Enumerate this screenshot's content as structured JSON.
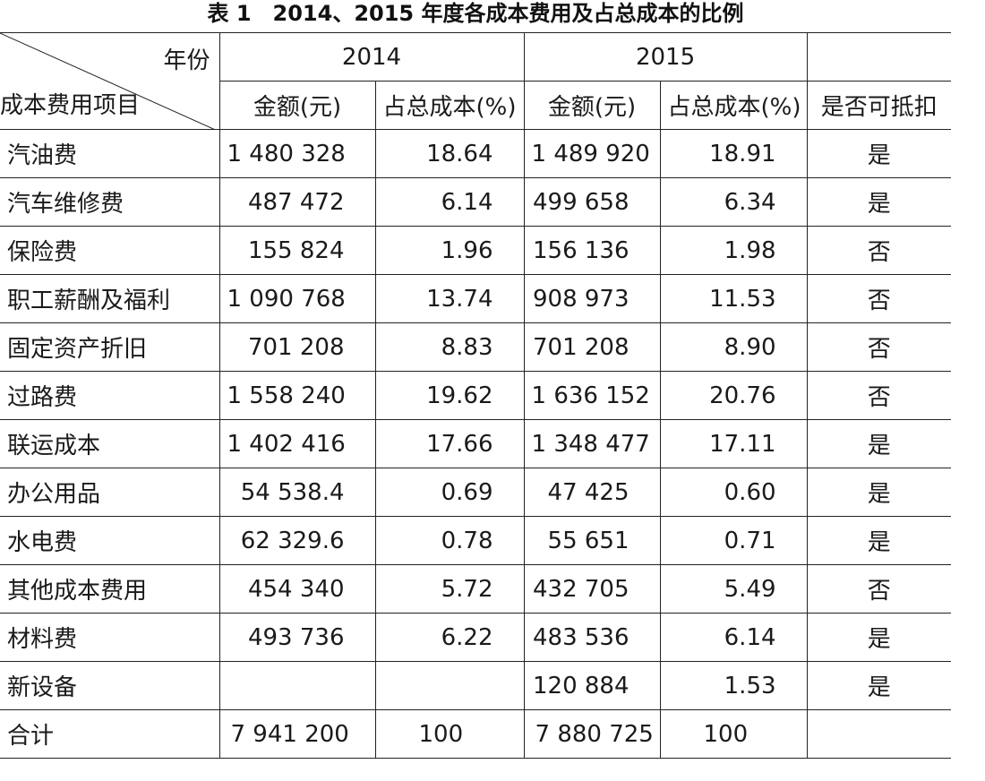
{
  "title": "表 1　2014、2015 年度各成本费用及占总成本的比例",
  "header": {
    "year_label": "年份",
    "item_label": "成本费用项目",
    "year_2014": "2014",
    "year_2015": "2015",
    "amount_label_2014": "金额(元)",
    "pct_label_2014": "占总成本(%)",
    "amount_label_2015": "金额(元)",
    "pct_label_2015": "占总成本(%)",
    "deductible_label": "是否可抵扣"
  },
  "rows": [
    {
      "name": "汽油费",
      "amt2014": "1 480 328",
      "pct2014": "18.64",
      "amt2015": "1 489 920",
      "pct2015": "18.91",
      "deductible": "是"
    },
    {
      "name": "汽车维修费",
      "amt2014": "487 472",
      "pct2014": "6.14",
      "amt2015": "499 658",
      "pct2015": "6.34",
      "deductible": "是"
    },
    {
      "name": "保险费",
      "amt2014": "155 824",
      "pct2014": "1.96",
      "amt2015": "156 136",
      "pct2015": "1.98",
      "deductible": "否"
    },
    {
      "name": "职工薪酬及福利",
      "amt2014": "1 090 768",
      "pct2014": "13.74",
      "amt2015": "908 973",
      "pct2015": "11.53",
      "deductible": "否"
    },
    {
      "name": "固定资产折旧",
      "amt2014": "701 208",
      "pct2014": "8.83",
      "amt2015": "701 208",
      "pct2015": "8.90",
      "deductible": "否"
    },
    {
      "name": "过路费",
      "amt2014": "1 558 240",
      "pct2014": "19.62",
      "amt2015": "1 636 152",
      "pct2015": "20.76",
      "deductible": "否"
    },
    {
      "name": "联运成本",
      "amt2014": "1 402 416",
      "pct2014": "17.66",
      "amt2015": "1 348 477",
      "pct2015": "17.11",
      "deductible": "是"
    },
    {
      "name": "办公用品",
      "amt2014": "54 538.4",
      "pct2014": "0.69",
      "amt2015": "47 425",
      "pct2015": "0.60",
      "deductible": "是"
    },
    {
      "name": "水电费",
      "amt2014": "62 329.6",
      "pct2014": "0.78",
      "amt2015": "55 651",
      "pct2015": "0.71",
      "deductible": "是"
    },
    {
      "name": "其他成本费用",
      "amt2014": "454 340",
      "pct2014": "5.72",
      "amt2015": "432 705",
      "pct2015": "5.49",
      "deductible": "否"
    },
    {
      "name": "材料费",
      "amt2014": "493 736",
      "pct2014": "6.22",
      "amt2015": "483 536",
      "pct2015": "6.14",
      "deductible": "是"
    },
    {
      "name": "新设备",
      "amt2014": "",
      "pct2014": "",
      "amt2015": "120 884",
      "pct2015": "1.53",
      "deductible": "是"
    }
  ],
  "total": {
    "name": "合计",
    "amt2014": "7 941 200",
    "pct2014": "100",
    "amt2015": "7 880 725",
    "pct2015": "100",
    "deductible": ""
  }
}
